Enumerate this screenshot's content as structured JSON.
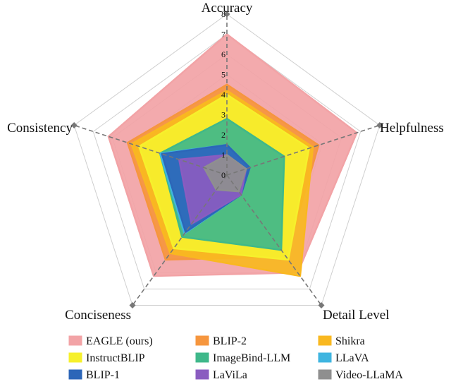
{
  "chart_data": {
    "type": "radar",
    "axes": [
      "Accuracy",
      "Helpfulness",
      "Detail Level",
      "Conciseness",
      "Consistency"
    ],
    "rlim": [
      0,
      8
    ],
    "ticks": [
      "0",
      "1",
      "2",
      "3",
      "4",
      "5",
      "6",
      "7",
      "8"
    ],
    "grid": true,
    "legend_position": "bottom",
    "series": [
      {
        "name": "EAGLE (ours)",
        "color": "#f2a3a6",
        "values": [
          7.0,
          6.8,
          6.0,
          6.2,
          6.2
        ]
      },
      {
        "name": "BLIP-2",
        "color": "#f6963e",
        "values": [
          4.5,
          4.8,
          5.0,
          5.2,
          5.2
        ]
      },
      {
        "name": "Shikra",
        "color": "#f9b820",
        "values": [
          4.2,
          4.5,
          6.2,
          4.8,
          5.0
        ]
      },
      {
        "name": "InstructBLIP",
        "color": "#f6f02c",
        "values": [
          4.0,
          4.3,
          5.2,
          4.5,
          4.6
        ]
      },
      {
        "name": "ImageBind-LLM",
        "color": "#3fb88a",
        "values": [
          2.8,
          3.0,
          4.6,
          3.8,
          3.5
        ]
      },
      {
        "name": "LLaVA",
        "color": "#3fb5e0",
        "values": [
          1.5,
          1.2,
          1.2,
          3.6,
          3.5
        ]
      },
      {
        "name": "BLIP-1",
        "color": "#2c66b8",
        "values": [
          1.5,
          1.2,
          1.2,
          3.5,
          3.4
        ]
      },
      {
        "name": "LaViLa",
        "color": "#8a5cc0",
        "values": [
          1.0,
          1.0,
          1.2,
          3.0,
          2.5
        ]
      },
      {
        "name": "Video-LLaMA",
        "color": "#8f8f8f",
        "values": [
          1.0,
          1.0,
          1.0,
          0.9,
          1.2
        ]
      }
    ]
  }
}
